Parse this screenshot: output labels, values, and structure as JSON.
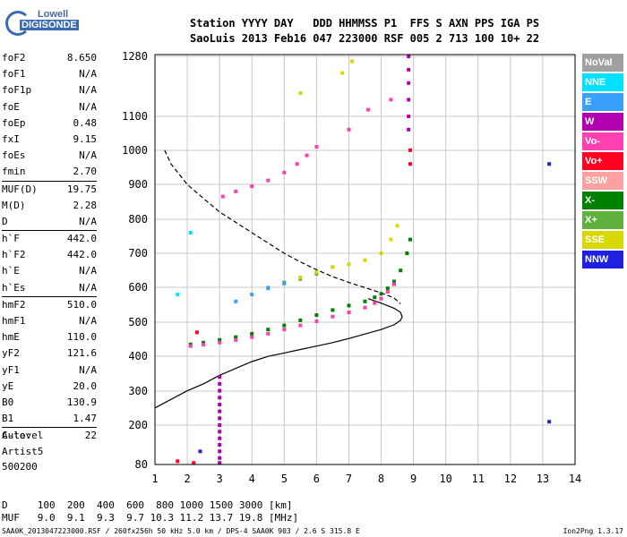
{
  "logo": {
    "line1": "Lowell",
    "line2": "DIGISONDE"
  },
  "header": {
    "labels": "Station YYYY DAY   DDD HHMMSS P1  FFS S AXN PPS IGA PS",
    "values": "SaoLuis 2013 Feb16 047 223000 RSF 005 2 713 100 10+ 22"
  },
  "params": [
    {
      "k": "foF2",
      "v": "8.650"
    },
    {
      "k": "foF1",
      "v": "N/A"
    },
    {
      "k": "foF1p",
      "v": "N/A"
    },
    {
      "k": "foE",
      "v": "N/A"
    },
    {
      "k": "foEp",
      "v": "0.48"
    },
    {
      "k": "fxI",
      "v": "9.15"
    },
    {
      "k": "foEs",
      "v": "N/A"
    },
    {
      "k": "fmin",
      "v": "2.70"
    },
    {
      "k": "MUF(D)",
      "v": "19.75",
      "sep": true
    },
    {
      "k": "M(D)",
      "v": "2.28"
    },
    {
      "k": "D",
      "v": "N/A"
    },
    {
      "k": "h`F",
      "v": "442.0",
      "sep": true
    },
    {
      "k": "h`F2",
      "v": "442.0"
    },
    {
      "k": "h`E",
      "v": "N/A"
    },
    {
      "k": "h`Es",
      "v": "N/A"
    },
    {
      "k": "hmF2",
      "v": "510.0",
      "sep": true
    },
    {
      "k": "hmF1",
      "v": "N/A"
    },
    {
      "k": "hmE",
      "v": "110.0"
    },
    {
      "k": "yF2",
      "v": "121.6"
    },
    {
      "k": "yF1",
      "v": "N/A"
    },
    {
      "k": "yE",
      "v": "20.0"
    },
    {
      "k": "B0",
      "v": "130.9"
    },
    {
      "k": "B1",
      "v": "1.47"
    },
    {
      "k": "C-level",
      "v": "22",
      "sep": true
    }
  ],
  "autoscaling": {
    "line1": "Auto:",
    "line2": "Artist5",
    "line3": "500200"
  },
  "legend": [
    {
      "label": "NoVal",
      "color": "#a0a0a0"
    },
    {
      "label": "NNE",
      "color": "#00e0ff"
    },
    {
      "label": "E",
      "color": "#3aa0ff"
    },
    {
      "label": "W",
      "color": "#b000b0"
    },
    {
      "label": "Vo-",
      "color": "#ff40b0"
    },
    {
      "label": "Vo+",
      "color": "#ff0020"
    },
    {
      "label": "SSW",
      "color": "#ffa0a0"
    },
    {
      "label": "X-",
      "color": "#008000"
    },
    {
      "label": "X+",
      "color": "#60b040"
    },
    {
      "label": "SSE",
      "color": "#d8d800"
    },
    {
      "label": "NNW",
      "color": "#2020e0"
    }
  ],
  "muf_table": {
    "d_row": "D     100  200  400  600  800 1000 1500 3000 [km]",
    "muf_row": "MUF   9.0  9.1  9.3  9.7 10.3 11.2 13.7 19.8 [MHz]"
  },
  "footer": "SAA0K_2013047223000.RSF / 260fx256h 50 kHz 5.0 km / DPS-4 SAA0K 903 / 2.6 S 315.8 E",
  "version": "Ion2Png 1.3.17",
  "chart_data": {
    "type": "scatter",
    "xlabel": "",
    "ylabel": "",
    "x_ticks": [
      1,
      2,
      3,
      4,
      5,
      6,
      7,
      8,
      9,
      10,
      11,
      12,
      13,
      14
    ],
    "y_tick_labels": [
      "80",
      "200",
      "300",
      "400",
      "500",
      "600",
      "700",
      "800",
      "900",
      "1000",
      "1100",
      "1280"
    ],
    "xlim": [
      1,
      14
    ],
    "ylim": [
      80,
      1280
    ],
    "grid": true,
    "series": [
      {
        "name": "X-",
        "color": "#008000",
        "points": [
          [
            2.1,
            435
          ],
          [
            2.5,
            440
          ],
          [
            3,
            448
          ],
          [
            3.5,
            456
          ],
          [
            4,
            466
          ],
          [
            4.5,
            478
          ],
          [
            5,
            490
          ],
          [
            5.5,
            505
          ],
          [
            6,
            520
          ],
          [
            6.5,
            535
          ],
          [
            7,
            548
          ],
          [
            7.5,
            560
          ],
          [
            7.8,
            572
          ],
          [
            8,
            582
          ],
          [
            8.2,
            598
          ],
          [
            8.4,
            618
          ],
          [
            8.6,
            650
          ],
          [
            8.8,
            700
          ],
          [
            8.9,
            740
          ]
        ]
      },
      {
        "name": "Vo-",
        "color": "#ff40b0",
        "points": [
          [
            2.1,
            430
          ],
          [
            2.5,
            434
          ],
          [
            3,
            440
          ],
          [
            3.5,
            448
          ],
          [
            4,
            456
          ],
          [
            4.5,
            466
          ],
          [
            5,
            478
          ],
          [
            5.5,
            490
          ],
          [
            6,
            502
          ],
          [
            6.5,
            516
          ],
          [
            7,
            528
          ],
          [
            7.5,
            542
          ],
          [
            7.8,
            555
          ],
          [
            8,
            568
          ],
          [
            8.2,
            588
          ],
          [
            8.4,
            610
          ],
          [
            3.1,
            865
          ],
          [
            3.5,
            880
          ],
          [
            4,
            895
          ],
          [
            4.5,
            912
          ],
          [
            5,
            935
          ],
          [
            5.4,
            960
          ],
          [
            5.7,
            985
          ],
          [
            6,
            1010
          ],
          [
            7,
            1060
          ],
          [
            7.6,
            1120
          ],
          [
            8.3,
            1150
          ]
        ]
      },
      {
        "name": "X+",
        "color": "#60b040",
        "points": [
          [
            4.5,
            600
          ],
          [
            5,
            615
          ],
          [
            5.5,
            625
          ],
          [
            6,
            640
          ],
          [
            6.5,
            660
          ]
        ]
      },
      {
        "name": "E",
        "color": "#3aa0ff",
        "points": [
          [
            3.5,
            560
          ],
          [
            4,
            580
          ],
          [
            4.5,
            598
          ],
          [
            5,
            612
          ]
        ]
      },
      {
        "name": "SSE",
        "color": "#d8d800",
        "points": [
          [
            5.5,
            630
          ],
          [
            6,
            645
          ],
          [
            6.5,
            660
          ],
          [
            7,
            668
          ],
          [
            7.5,
            680
          ],
          [
            8,
            700
          ],
          [
            8.3,
            740
          ],
          [
            8.5,
            780
          ],
          [
            6.8,
            1230
          ],
          [
            7.1,
            1265
          ],
          [
            5.5,
            1170
          ]
        ]
      },
      {
        "name": "W",
        "color": "#b000b0",
        "points": [
          [
            8.85,
            1280
          ],
          [
            8.85,
            1240
          ],
          [
            8.85,
            1200
          ],
          [
            8.85,
            1150
          ],
          [
            8.85,
            1100
          ],
          [
            8.85,
            1060
          ],
          [
            3,
            340
          ],
          [
            3,
            320
          ],
          [
            3,
            300
          ],
          [
            3,
            280
          ],
          [
            3,
            260
          ],
          [
            3,
            240
          ],
          [
            3,
            220
          ],
          [
            3,
            200
          ],
          [
            3,
            180
          ],
          [
            3,
            160
          ],
          [
            3,
            140
          ],
          [
            3,
            120
          ],
          [
            3,
            100
          ],
          [
            3,
            85
          ]
        ]
      },
      {
        "name": "Vo+",
        "color": "#ff0020",
        "points": [
          [
            2.3,
            470
          ],
          [
            8.9,
            1000
          ],
          [
            8.9,
            960
          ],
          [
            1.7,
            90
          ],
          [
            2.2,
            85
          ]
        ]
      },
      {
        "name": "NNW",
        "color": "#2020e0",
        "points": [
          [
            13.2,
            960
          ],
          [
            13.2,
            210
          ],
          [
            2.4,
            120
          ]
        ]
      },
      {
        "name": "NNE",
        "color": "#00e0ff",
        "points": [
          [
            1.7,
            580
          ],
          [
            2.1,
            760
          ]
        ]
      },
      {
        "name": "profile",
        "color": "#000000",
        "kind": "solid",
        "points": [
          [
            1.0,
            250
          ],
          [
            1.5,
            275
          ],
          [
            2.0,
            300
          ],
          [
            2.5,
            320
          ],
          [
            3.0,
            345
          ],
          [
            3.5,
            365
          ],
          [
            4.0,
            385
          ],
          [
            4.5,
            400
          ],
          [
            5.0,
            410
          ],
          [
            5.5,
            420
          ],
          [
            6.0,
            430
          ],
          [
            6.5,
            440
          ],
          [
            7.0,
            452
          ],
          [
            7.5,
            465
          ],
          [
            8.0,
            478
          ],
          [
            8.4,
            492
          ],
          [
            8.6,
            505
          ],
          [
            8.65,
            515
          ],
          [
            8.6,
            528
          ],
          [
            8.4,
            540
          ],
          [
            8.0,
            555
          ],
          [
            7.6,
            568
          ]
        ]
      },
      {
        "name": "trace",
        "color": "#000000",
        "kind": "dashed",
        "points": [
          [
            1.3,
            1000
          ],
          [
            1.5,
            960
          ],
          [
            2.0,
            900
          ],
          [
            2.5,
            860
          ],
          [
            3.0,
            820
          ],
          [
            3.5,
            790
          ],
          [
            4.0,
            760
          ],
          [
            4.5,
            730
          ],
          [
            5.0,
            700
          ],
          [
            5.5,
            675
          ],
          [
            6.0,
            652
          ],
          [
            6.5,
            632
          ],
          [
            7.0,
            615
          ],
          [
            7.5,
            600
          ],
          [
            8.0,
            585
          ],
          [
            8.4,
            570
          ],
          [
            8.6,
            553
          ]
        ]
      }
    ]
  }
}
